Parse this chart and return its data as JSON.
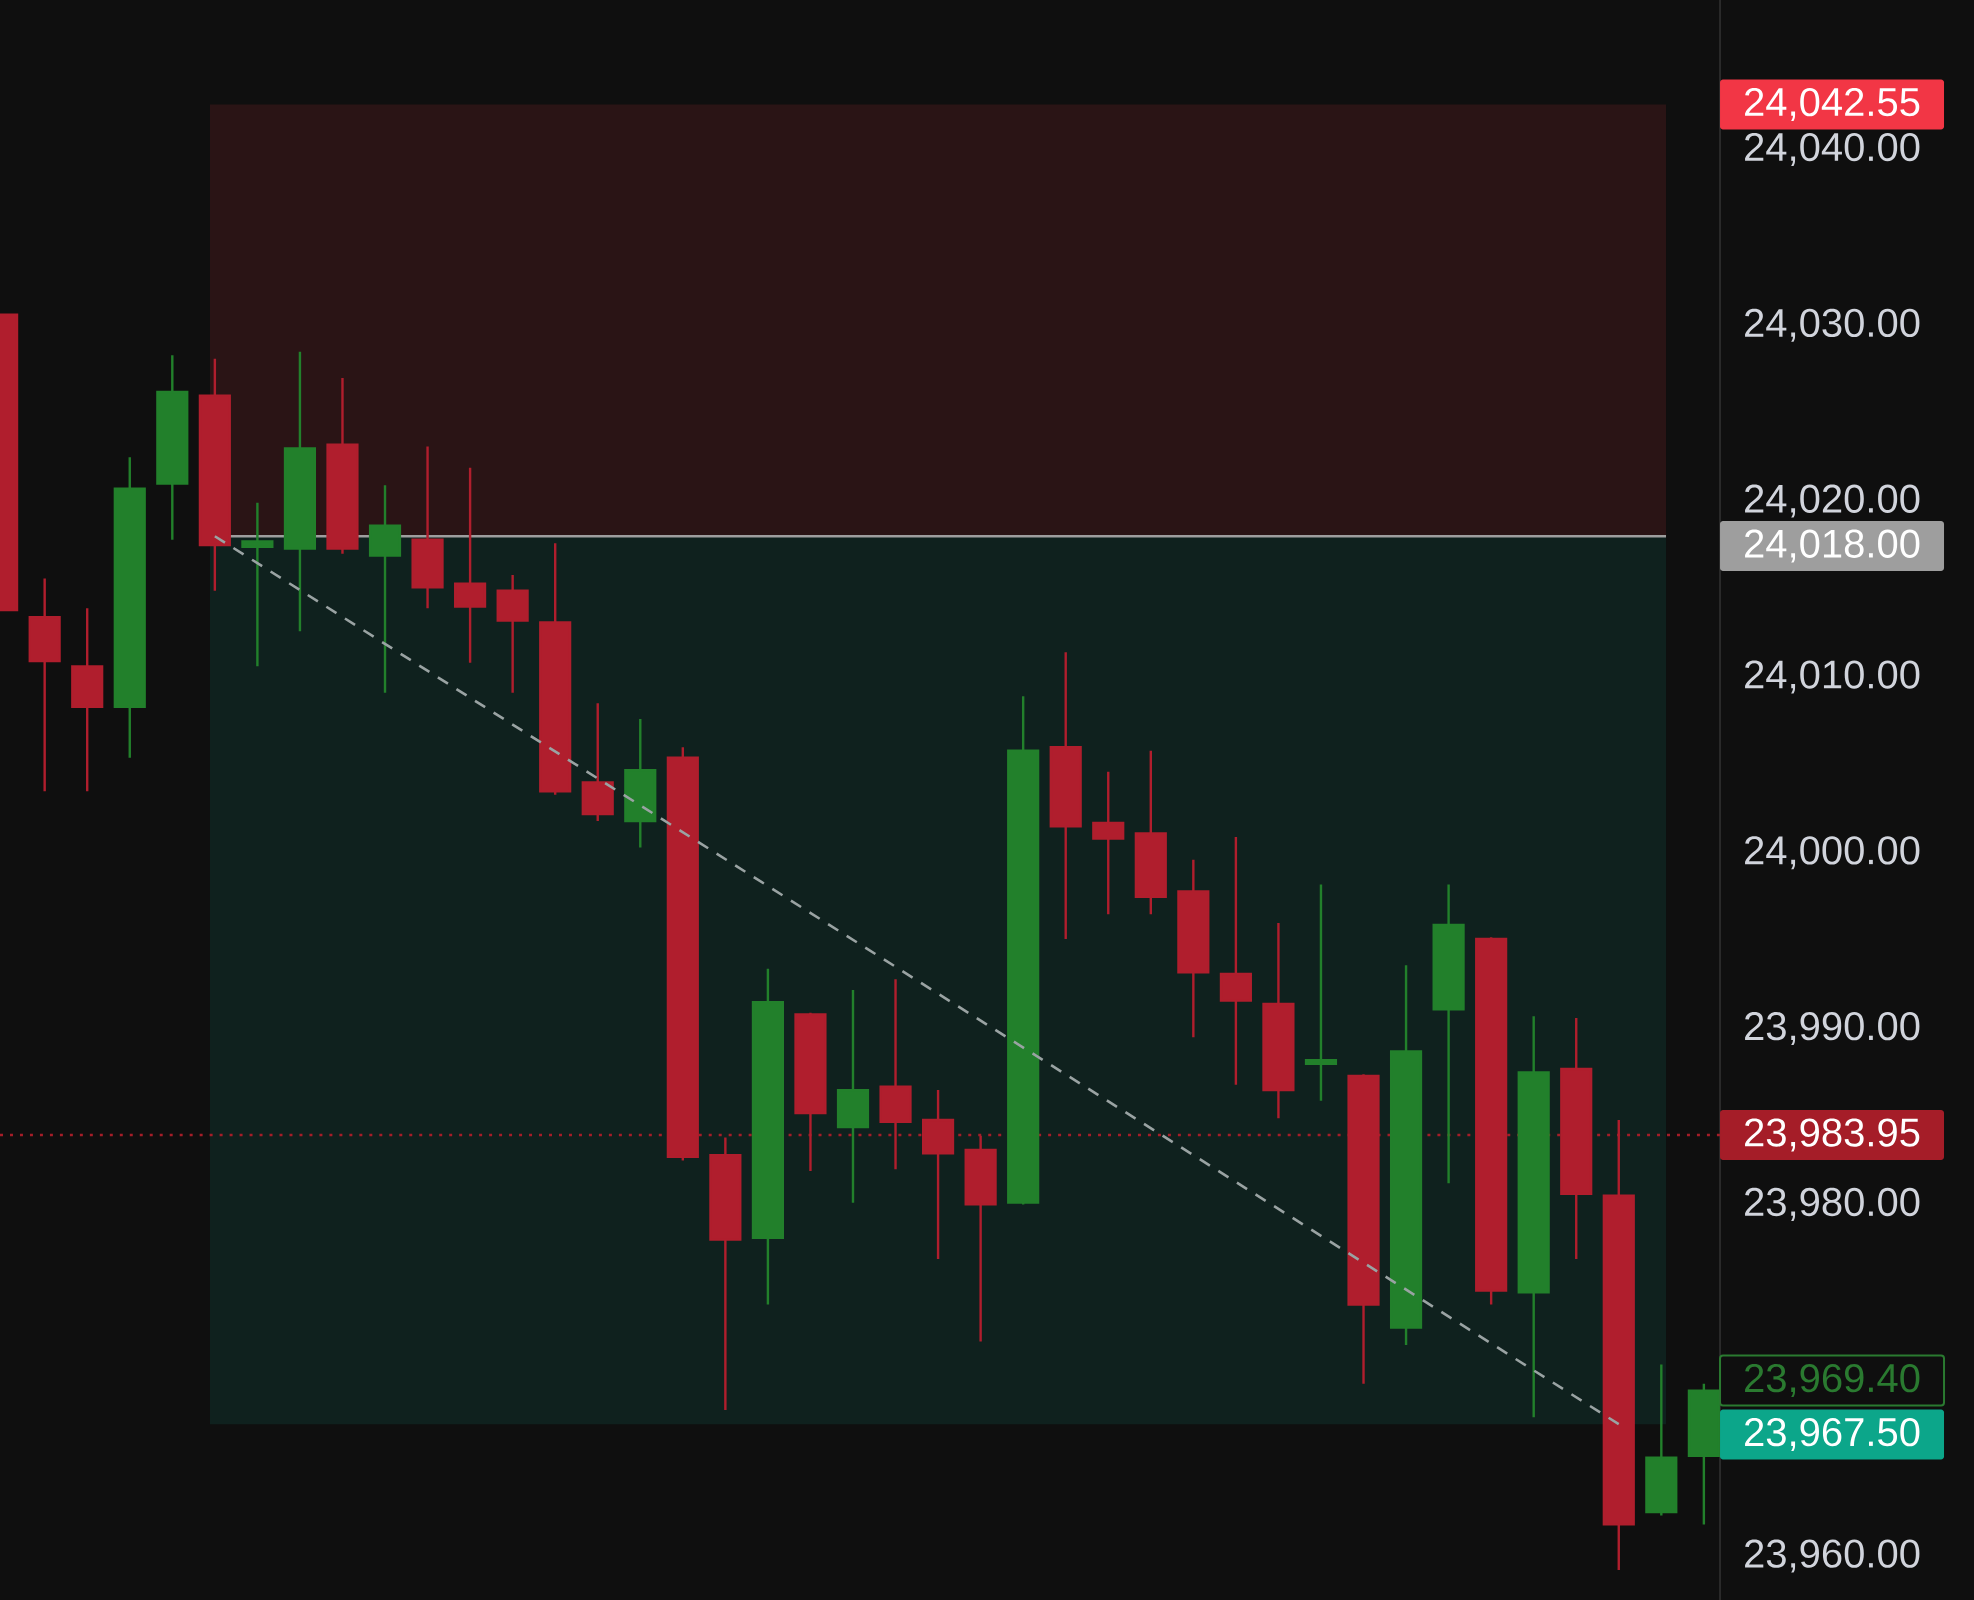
{
  "chart_data": {
    "type": "candlestick",
    "categories": [
      null,
      null,
      null,
      null,
      null,
      null,
      null,
      null,
      null,
      null,
      null,
      null,
      null,
      null,
      null,
      null,
      null,
      null,
      null,
      null,
      null,
      null,
      null,
      null,
      null,
      null,
      null,
      null,
      null,
      null,
      null,
      null,
      null,
      null,
      null,
      null,
      null,
      null,
      null,
      null,
      null
    ],
    "ohlc": [
      [
        24030.6,
        24030.6,
        24013.8,
        24013.8
      ],
      [
        24013.4,
        24015.6,
        24003.5,
        24010.9
      ],
      [
        24010.6,
        24013.9,
        24003.5,
        24008.3
      ],
      [
        24008.3,
        24022.5,
        24005.4,
        24020.7
      ],
      [
        24021.0,
        24028.3,
        24017.8,
        24026.2
      ],
      [
        24026.0,
        24028.1,
        24014.9,
        24017.5
      ],
      [
        24017.4,
        24019.9,
        24010.6,
        24017.7
      ],
      [
        24017.3,
        24028.5,
        24012.6,
        24023.0
      ],
      [
        24023.2,
        24027.0,
        24017.0,
        24017.3
      ],
      [
        24016.9,
        24020.9,
        24009.1,
        24018.6
      ],
      [
        24017.8,
        24023.1,
        24013.9,
        24015.1
      ],
      [
        24015.3,
        24021.9,
        24010.8,
        24014.0
      ],
      [
        24014.9,
        24015.8,
        24009.1,
        24013.2
      ],
      [
        24013.1,
        24017.6,
        24003.3,
        24003.5
      ],
      [
        24004.0,
        24008.5,
        24001.8,
        24002.2
      ],
      [
        24001.8,
        24007.6,
        24000.3,
        24004.7
      ],
      [
        24005.4,
        24006.0,
        23982.5,
        23982.7
      ],
      [
        23982.8,
        23983.8,
        23968.3,
        23978.0
      ],
      [
        23978.1,
        23993.4,
        23974.3,
        23991.5
      ],
      [
        23990.8,
        23990.9,
        23981.9,
        23985.2
      ],
      [
        23984.4,
        23992.2,
        23980.1,
        23986.5
      ],
      [
        23986.7,
        23992.8,
        23982.0,
        23984.7
      ],
      [
        23984.8,
        23986.5,
        23976.9,
        23982.9
      ],
      [
        23983.1,
        23983.9,
        23972.2,
        23980.0
      ],
      [
        23980.1,
        24008.9,
        23980.0,
        24005.8
      ],
      [
        24006.0,
        24011.4,
        23995.1,
        24001.5
      ],
      [
        24001.7,
        24004.6,
        23996.5,
        24000.8
      ],
      [
        24001.1,
        24005.8,
        23996.5,
        23997.5
      ],
      [
        23997.8,
        23999.6,
        23989.5,
        23993.2
      ],
      [
        23993.1,
        24000.9,
        23986.8,
        23991.6
      ],
      [
        23991.4,
        23996.0,
        23984.9,
        23986.5
      ],
      [
        23988.0,
        23998.2,
        23985.9,
        23988.2
      ],
      [
        23987.3,
        23987.4,
        23969.8,
        23974.3
      ],
      [
        23973.0,
        23993.6,
        23972.0,
        23988.7
      ],
      [
        23991.1,
        23998.2,
        23981.2,
        23995.9
      ],
      [
        23995.1,
        23995.2,
        23974.3,
        23975.1
      ],
      [
        23975.0,
        23990.7,
        23967.9,
        23987.5
      ],
      [
        23987.7,
        23990.6,
        23976.9,
        23980.6
      ],
      [
        23980.5,
        23984.8,
        23959.2,
        23961.8
      ],
      [
        23962.5,
        23970.9,
        23962.3,
        23965.6
      ],
      [
        23965.7,
        23969.8,
        23961.8,
        23969.4
      ]
    ],
    "colors": [
      "#b01e2d",
      "#b01e2d",
      "#b01e2d",
      "#22802b",
      "#22802b",
      "#b01e2d",
      "#22802b",
      "#22802b",
      "#b01e2d",
      "#22802b",
      "#b01e2d",
      "#b01e2d",
      "#b01e2d",
      "#b01e2d",
      "#b01e2d",
      "#22802b",
      "#b01e2d",
      "#b01e2d",
      "#22802b",
      "#b01e2d",
      "#22802b",
      "#b01e2d",
      "#b01e2d",
      "#b01e2d",
      "#22802b",
      "#b01e2d",
      "#b01e2d",
      "#b01e2d",
      "#b01e2d",
      "#b01e2d",
      "#b01e2d",
      "#22802b",
      "#b01e2d",
      "#22802b",
      "#22802b",
      "#b01e2d",
      "#22802b",
      "#b01e2d",
      "#b01e2d",
      "#22802b",
      "#22802b"
    ],
    "ylim": [
      23957.5,
      24048.5
    ],
    "yticks": [
      {
        "value": 23960,
        "label": "23,960.00"
      },
      {
        "value": 23980,
        "label": "23,980.00"
      },
      {
        "value": 23990,
        "label": "23,990.00"
      },
      {
        "value": 24000,
        "label": "24,000.00"
      },
      {
        "value": 24010,
        "label": "24,010.00"
      },
      {
        "value": 24020,
        "label": "24,020.00"
      },
      {
        "value": 24030,
        "label": "24,030.00"
      },
      {
        "value": 24040,
        "label": "24,040.00"
      }
    ],
    "series": [
      {
        "type": "line",
        "color": "#9aa3a3",
        "line_style": "dashed",
        "values": [
          null,
          null,
          null,
          null,
          null,
          24018,
          null,
          null,
          null,
          null,
          null,
          null,
          null,
          null,
          null,
          null,
          null,
          null,
          null,
          null,
          null,
          null,
          null,
          null,
          null,
          null,
          null,
          null,
          null,
          null,
          null,
          null,
          null,
          null,
          null,
          null,
          null,
          null,
          23967.5,
          null,
          null
        ]
      }
    ],
    "bands": [
      {
        "axis": "y",
        "from": 24018,
        "to": 24042.55,
        "label": "24,042.55",
        "color": "#2a1415"
      },
      {
        "axis": "y",
        "from": 24018,
        "to": 23967.5,
        "label": "23,967.50",
        "color": "#0f211e"
      }
    ],
    "ref_lines": [
      {
        "axis": "y",
        "value": 24018,
        "label": "24,018.00",
        "color": "#9e9e9e"
      },
      {
        "axis": "y",
        "value": 23983.95,
        "label": "23,983.95",
        "color": "#a51d28",
        "line_style": "dotted"
      }
    ],
    "annotations": [
      "23,969.40"
    ]
  }
}
